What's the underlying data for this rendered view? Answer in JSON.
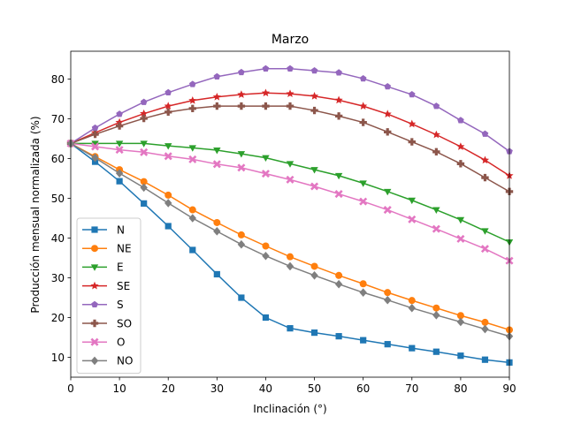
{
  "chart_data": {
    "type": "line",
    "title": "Marzo",
    "xlabel": "Inclinación (°)",
    "ylabel": "Producción mensual normalizada (%)",
    "xlim": [
      0,
      90
    ],
    "ylim": [
      5,
      87
    ],
    "xticks": [
      0,
      10,
      20,
      30,
      40,
      50,
      60,
      70,
      80,
      90
    ],
    "yticks": [
      10,
      20,
      30,
      40,
      50,
      60,
      70,
      80
    ],
    "grid": false,
    "legend_position": "lower-left",
    "x": [
      0,
      5,
      10,
      15,
      20,
      25,
      30,
      35,
      40,
      45,
      50,
      55,
      60,
      65,
      70,
      75,
      80,
      85,
      90
    ],
    "series": [
      {
        "name": "N",
        "color": "#1f77b4",
        "marker": "square",
        "values": [
          63.8,
          59.2,
          54.3,
          48.7,
          43.0,
          37.0,
          30.9,
          25.0,
          20.0,
          17.3,
          16.2,
          15.3,
          14.3,
          13.3,
          12.3,
          11.4,
          10.4,
          9.4,
          8.7
        ]
      },
      {
        "name": "NE",
        "color": "#ff7f0e",
        "marker": "circle",
        "values": [
          63.8,
          60.5,
          57.2,
          54.2,
          50.8,
          47.1,
          43.9,
          40.8,
          38.0,
          35.3,
          32.9,
          30.6,
          28.5,
          26.3,
          24.3,
          22.4,
          20.5,
          18.8,
          16.9
        ]
      },
      {
        "name": "E",
        "color": "#2ca02c",
        "marker": "triangle-down",
        "values": [
          63.8,
          63.8,
          63.8,
          63.8,
          63.2,
          62.7,
          62.1,
          61.2,
          60.2,
          58.7,
          57.2,
          55.7,
          53.8,
          51.7,
          49.5,
          47.1,
          44.6,
          41.8,
          39.0
        ]
      },
      {
        "name": "SE",
        "color": "#d62728",
        "marker": "star",
        "values": [
          63.8,
          66.5,
          69.1,
          71.3,
          73.2,
          74.6,
          75.5,
          76.1,
          76.5,
          76.3,
          75.7,
          74.7,
          73.2,
          71.2,
          68.7,
          66.0,
          63.0,
          59.6,
          55.7
        ]
      },
      {
        "name": "S",
        "color": "#9467bd",
        "marker": "pentagon",
        "values": [
          63.8,
          67.7,
          71.2,
          74.2,
          76.6,
          78.7,
          80.6,
          81.7,
          82.6,
          82.6,
          82.1,
          81.6,
          80.1,
          78.1,
          76.1,
          73.2,
          69.6,
          66.2,
          61.8
        ]
      },
      {
        "name": "SO",
        "color": "#8c564b",
        "marker": "plus",
        "values": [
          63.8,
          66.1,
          68.2,
          70.1,
          71.7,
          72.6,
          73.2,
          73.2,
          73.2,
          73.2,
          72.1,
          70.7,
          69.1,
          66.7,
          64.2,
          61.7,
          58.7,
          55.2,
          51.7
        ]
      },
      {
        "name": "O",
        "color": "#e377c2",
        "marker": "x",
        "values": [
          63.8,
          63.0,
          62.2,
          61.6,
          60.6,
          59.8,
          58.6,
          57.7,
          56.2,
          54.7,
          53.0,
          51.1,
          49.2,
          47.1,
          44.7,
          42.3,
          39.8,
          37.3,
          34.3
        ]
      },
      {
        "name": "NO",
        "color": "#7f7f7f",
        "marker": "diamond",
        "values": [
          63.8,
          60.2,
          56.3,
          52.7,
          48.8,
          45.0,
          41.7,
          38.4,
          35.5,
          32.9,
          30.6,
          28.4,
          26.3,
          24.4,
          22.4,
          20.6,
          18.9,
          17.1,
          15.3
        ]
      }
    ]
  }
}
